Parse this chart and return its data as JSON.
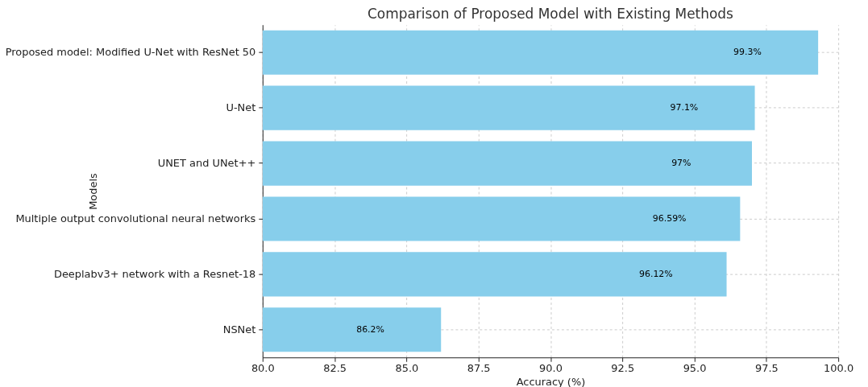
{
  "chart_data": {
    "type": "bar",
    "orientation": "horizontal",
    "title": "Comparison of Proposed Model with Existing Methods",
    "xlabel": "Accuracy (%)",
    "ylabel": "Models",
    "categories": [
      "Proposed model: Modified U-Net with ResNet 50",
      "U-Net",
      "UNET and UNet++",
      "Multiple output convolutional neural networks",
      "Deeplabv3+ network with a Resnet-18",
      "NSNet"
    ],
    "values": [
      99.3,
      97.1,
      97,
      96.59,
      96.12,
      86.2
    ],
    "value_labels": [
      "99.3%",
      "97.1%",
      "97%",
      "96.59%",
      "96.12%",
      "86.2%"
    ],
    "color": "#87ceeb",
    "xlim": [
      80,
      100
    ],
    "xticks": [
      {
        "value": 80,
        "label": "80.0"
      },
      {
        "value": 82.5,
        "label": "82.5"
      },
      {
        "value": 85,
        "label": "85.0"
      },
      {
        "value": 87.5,
        "label": "87.5"
      },
      {
        "value": 90,
        "label": "90.0"
      },
      {
        "value": 92.5,
        "label": "92.5"
      },
      {
        "value": 95,
        "label": "95.0"
      },
      {
        "value": 97.5,
        "label": "97.5"
      },
      {
        "value": 100,
        "label": "100.0"
      }
    ],
    "grid": true
  }
}
